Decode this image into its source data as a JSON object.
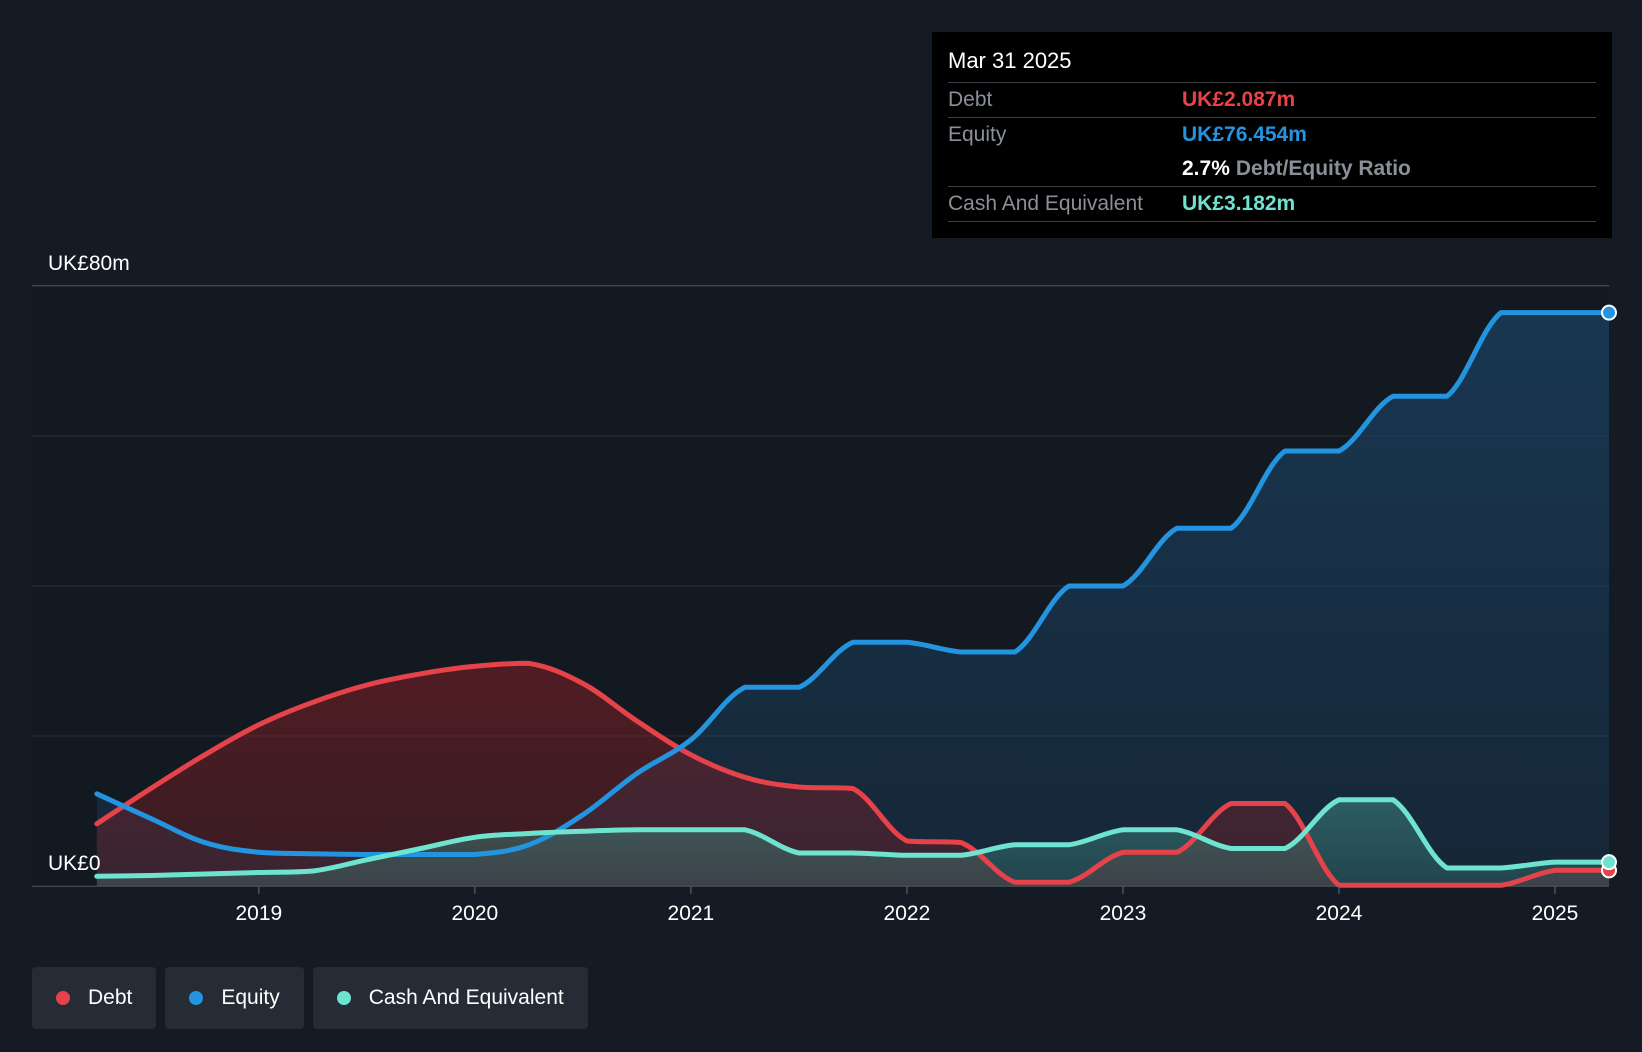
{
  "tooltip": {
    "date": "Mar 31 2025",
    "debt_label": "Debt",
    "debt_value": "UK£2.087m",
    "equity_label": "Equity",
    "equity_value": "UK£76.454m",
    "ratio_value": "2.7%",
    "ratio_label": "Debt/Equity Ratio",
    "cash_label": "Cash And Equivalent",
    "cash_value": "UK£3.182m"
  },
  "legend": {
    "debt": "Debt",
    "equity": "Equity",
    "cash": "Cash And Equivalent"
  },
  "colors": {
    "debt": "#e5424a",
    "equity": "#2394df",
    "cash": "#6ee3cf",
    "background": "#151b24",
    "grid": "#39404a"
  },
  "chart_data": {
    "type": "area",
    "title": "",
    "xlabel": "",
    "ylabel": "",
    "ytick_labels": [
      "UK£0",
      "UK£80m"
    ],
    "xtick_labels": [
      "2019",
      "2020",
      "2021",
      "2022",
      "2023",
      "2024",
      "2025"
    ],
    "xticks": [
      2019,
      2020,
      2021,
      2022,
      2023,
      2024,
      2025
    ],
    "xlim": [
      2017.95,
      2025.25
    ],
    "ylim": [
      0,
      80
    ],
    "gridlines": [
      0,
      20,
      40,
      60,
      80
    ],
    "series": [
      {
        "name": "Debt",
        "key": "debt",
        "points": [
          [
            2018.25,
            8.3
          ],
          [
            2018.5,
            13.0
          ],
          [
            2018.75,
            17.5
          ],
          [
            2019.0,
            21.5
          ],
          [
            2019.25,
            24.5
          ],
          [
            2019.5,
            26.8
          ],
          [
            2019.75,
            28.3
          ],
          [
            2020.0,
            29.3
          ],
          [
            2020.25,
            29.7
          ],
          [
            2020.5,
            27.0
          ],
          [
            2020.75,
            22.0
          ],
          [
            2021.0,
            17.5
          ],
          [
            2021.25,
            14.5
          ],
          [
            2021.5,
            13.2
          ],
          [
            2021.75,
            13.0
          ],
          [
            2022.0,
            6.0
          ],
          [
            2022.25,
            5.8
          ],
          [
            2022.5,
            0.5
          ],
          [
            2022.75,
            0.5
          ],
          [
            2023.0,
            4.5
          ],
          [
            2023.25,
            4.5
          ],
          [
            2023.5,
            11.0
          ],
          [
            2023.75,
            11.0
          ],
          [
            2024.0,
            0.1
          ],
          [
            2024.25,
            0.1
          ],
          [
            2024.5,
            0.1
          ],
          [
            2024.75,
            0.1
          ],
          [
            2025.0,
            2.087
          ],
          [
            2025.25,
            2.087
          ]
        ]
      },
      {
        "name": "Equity",
        "key": "equity",
        "points": [
          [
            2018.25,
            12.3
          ],
          [
            2018.5,
            9.0
          ],
          [
            2018.75,
            5.8
          ],
          [
            2019.0,
            4.5
          ],
          [
            2019.25,
            4.3
          ],
          [
            2019.5,
            4.2
          ],
          [
            2019.75,
            4.2
          ],
          [
            2020.0,
            4.2
          ],
          [
            2020.25,
            5.5
          ],
          [
            2020.5,
            9.5
          ],
          [
            2020.75,
            15.0
          ],
          [
            2021.0,
            19.5
          ],
          [
            2021.25,
            26.5
          ],
          [
            2021.5,
            26.5
          ],
          [
            2021.75,
            32.5
          ],
          [
            2022.0,
            32.5
          ],
          [
            2022.25,
            31.2
          ],
          [
            2022.5,
            31.2
          ],
          [
            2022.75,
            40.0
          ],
          [
            2023.0,
            40.0
          ],
          [
            2023.25,
            47.7
          ],
          [
            2023.5,
            47.7
          ],
          [
            2023.75,
            58.0
          ],
          [
            2024.0,
            58.0
          ],
          [
            2024.25,
            65.3
          ],
          [
            2024.5,
            65.3
          ],
          [
            2024.75,
            76.454
          ],
          [
            2025.0,
            76.454
          ],
          [
            2025.25,
            76.454
          ]
        ]
      },
      {
        "name": "Cash And Equivalent",
        "key": "cash",
        "points": [
          [
            2018.25,
            1.3
          ],
          [
            2018.5,
            1.4
          ],
          [
            2018.75,
            1.6
          ],
          [
            2019.0,
            1.8
          ],
          [
            2019.25,
            2.0
          ],
          [
            2019.5,
            3.5
          ],
          [
            2019.75,
            5.0
          ],
          [
            2020.0,
            6.5
          ],
          [
            2020.25,
            7.0
          ],
          [
            2020.5,
            7.3
          ],
          [
            2020.75,
            7.5
          ],
          [
            2021.0,
            7.5
          ],
          [
            2021.25,
            7.5
          ],
          [
            2021.5,
            4.4
          ],
          [
            2021.75,
            4.4
          ],
          [
            2022.0,
            4.1
          ],
          [
            2022.25,
            4.1
          ],
          [
            2022.5,
            5.5
          ],
          [
            2022.75,
            5.5
          ],
          [
            2023.0,
            7.5
          ],
          [
            2023.25,
            7.5
          ],
          [
            2023.5,
            5.0
          ],
          [
            2023.75,
            5.0
          ],
          [
            2024.0,
            11.5
          ],
          [
            2024.25,
            11.5
          ],
          [
            2024.5,
            2.4
          ],
          [
            2024.75,
            2.4
          ],
          [
            2025.0,
            3.182
          ],
          [
            2025.25,
            3.182
          ]
        ]
      }
    ]
  }
}
